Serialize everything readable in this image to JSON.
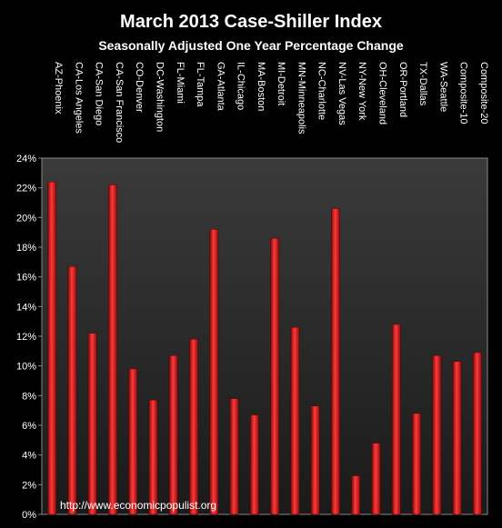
{
  "chart_data": {
    "type": "bar",
    "title": "March 2013 Case-Shiller Index",
    "subtitle": "Seasonally Adjusted One Year Percentage Change",
    "categories": [
      "AZ-Phoenix",
      "CA-Los Angeles",
      "CA-San Diego",
      "CA-San Francisco",
      "CO-Denver",
      "DC-Washington",
      "FL-Miami",
      "FL-Tampa",
      "GA-Atlanta",
      "IL-Chicago",
      "MA-Boston",
      "MI-Detroit",
      "MN-Minneapolis",
      "NC-Charlotte",
      "NV-Las Vegas",
      "NY-New York",
      "OH-Cleveland",
      "OR-Portland",
      "TX-Dallas",
      "WA-Seattle",
      "Composite-10",
      "Composite-20"
    ],
    "values": [
      22.4,
      16.7,
      12.2,
      22.2,
      9.8,
      7.7,
      10.7,
      11.8,
      19.2,
      7.8,
      6.7,
      18.6,
      12.6,
      7.3,
      20.6,
      2.6,
      4.8,
      12.8,
      6.8,
      10.7,
      10.3,
      10.9
    ],
    "ylim": [
      0,
      24
    ],
    "yticks": [
      0,
      2,
      4,
      6,
      8,
      10,
      12,
      14,
      16,
      18,
      20,
      22,
      24
    ],
    "ytick_suffix": "%",
    "grid": false,
    "bar_color": "#e02020"
  },
  "watermark": "http://www.economicpopulist.org"
}
